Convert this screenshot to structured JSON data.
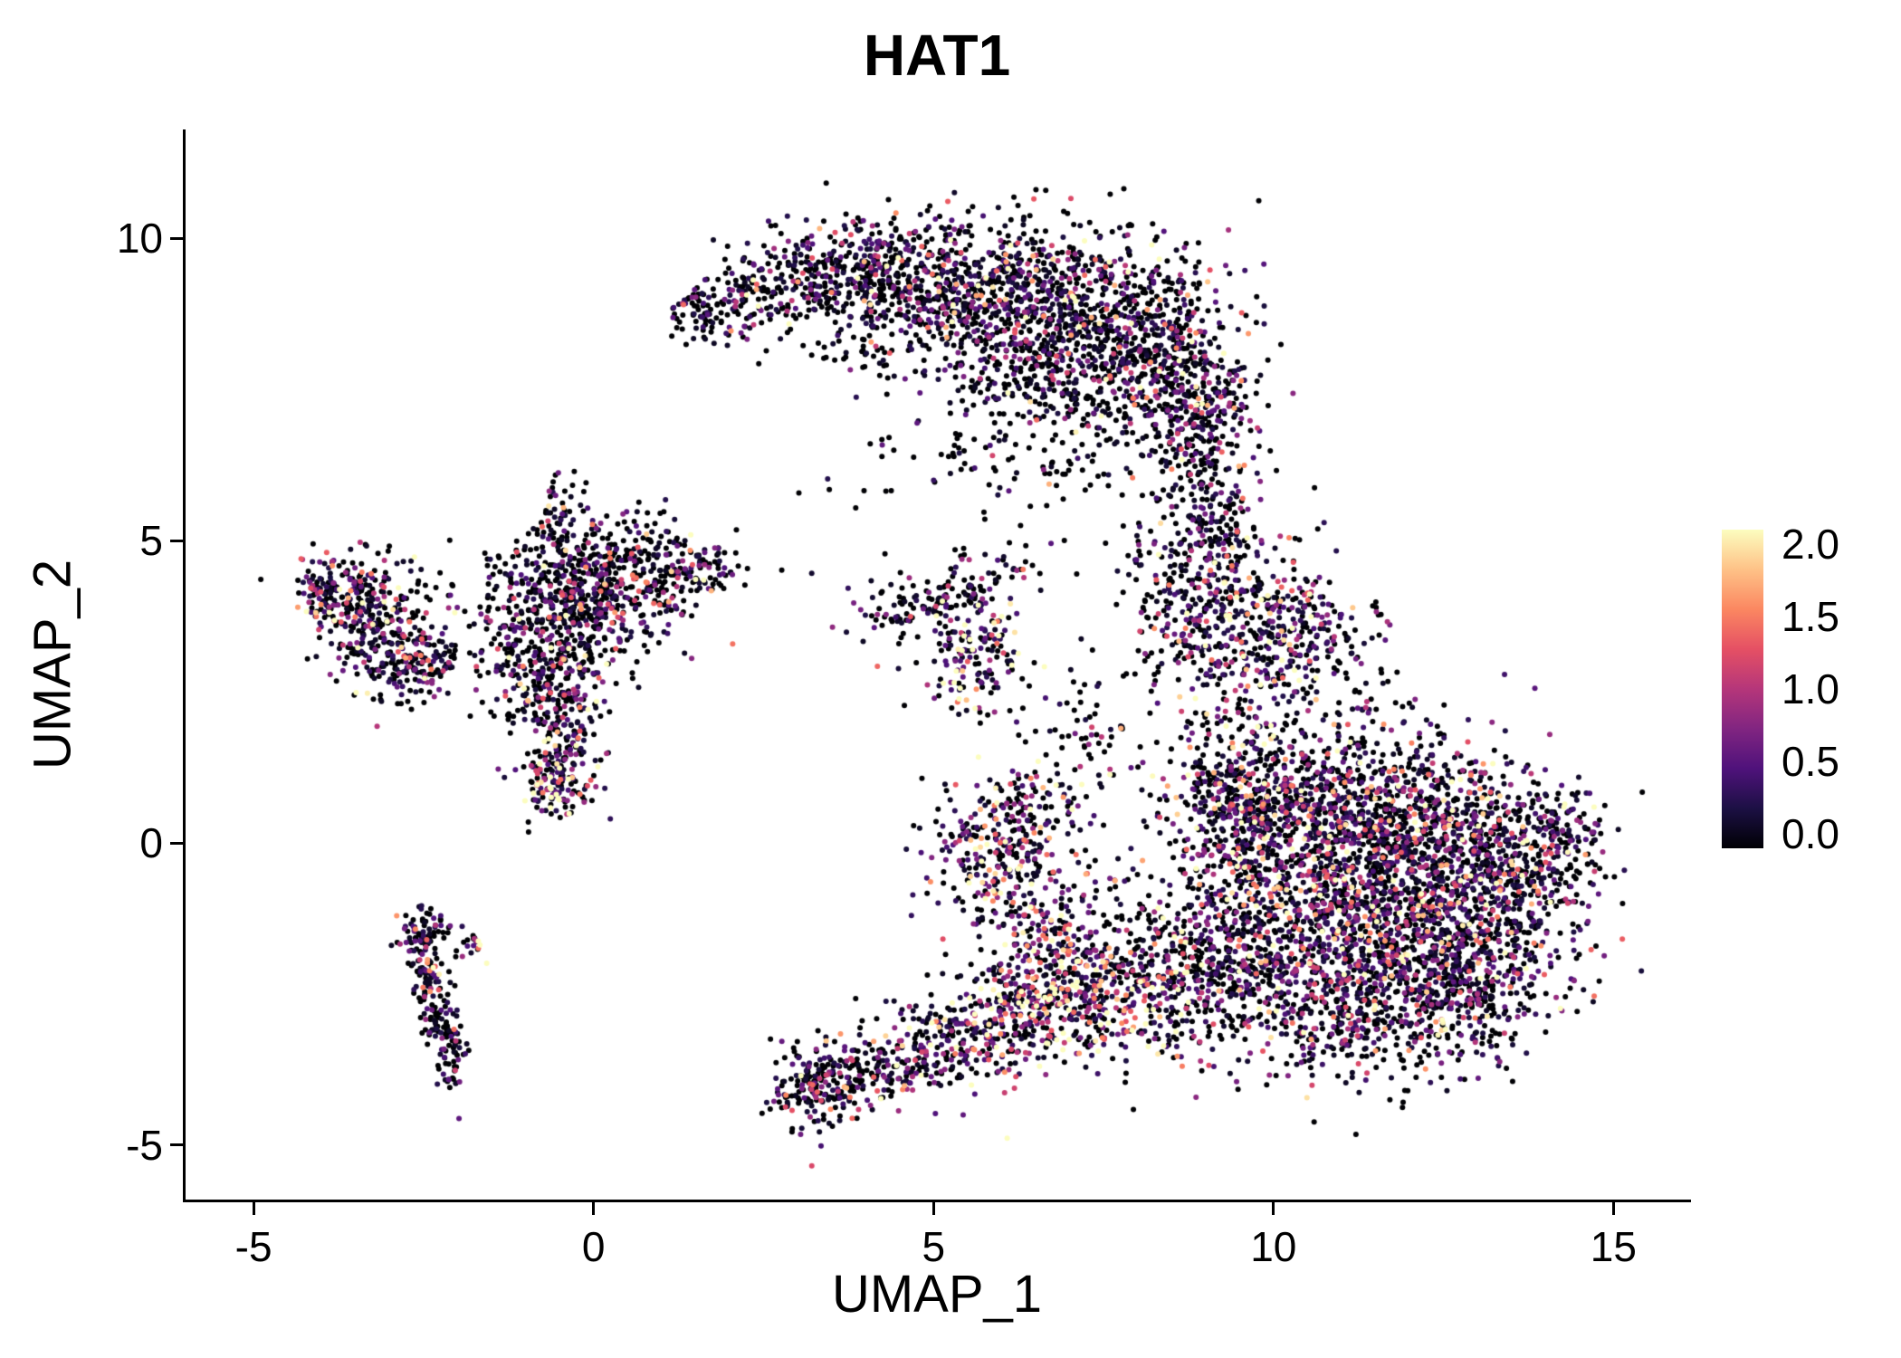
{
  "title": "HAT1",
  "axes": {
    "x": {
      "label": "UMAP_1",
      "tick_values": [
        -5,
        0,
        5,
        10,
        15
      ],
      "tick_labels": [
        "-5",
        "0",
        "5",
        "10",
        "15"
      ]
    },
    "y": {
      "label": "UMAP_2",
      "tick_values": [
        -5,
        0,
        5,
        10
      ],
      "tick_labels": [
        "-5",
        "0",
        "5",
        "10"
      ]
    }
  },
  "colorbar": {
    "min": 0.0,
    "max": 2.0,
    "tick_values": [
      0.0,
      0.5,
      1.0,
      1.5,
      2.0
    ],
    "tick_labels": [
      "0.0",
      "0.5",
      "1.0",
      "1.5",
      "2.0"
    ]
  },
  "chart_data": {
    "type": "scatter",
    "title": "HAT1",
    "xlabel": "UMAP_1",
    "ylabel": "UMAP_2",
    "xlim": [
      -6.0,
      16.1
    ],
    "ylim": [
      -5.9,
      11.8
    ],
    "value_range": [
      0,
      2
    ],
    "point_radius_px": 3,
    "seed": 42,
    "color_by": "HAT1 expression",
    "colormap_stops": [
      [
        0.0,
        "#000004"
      ],
      [
        0.125,
        "#1c1044"
      ],
      [
        0.25,
        "#4f127b"
      ],
      [
        0.375,
        "#812581"
      ],
      [
        0.5,
        "#b5367a"
      ],
      [
        0.625,
        "#e55064"
      ],
      [
        0.75,
        "#fb8761"
      ],
      [
        0.875,
        "#fec287"
      ],
      [
        1.0,
        "#fcfdbf"
      ]
    ],
    "cluster_fields": [
      "center_x",
      "center_y",
      "sd_x",
      "sd_y",
      "n_points",
      "prob_zero_expression",
      "expression_scale"
    ],
    "clusters": [
      [
        1.6,
        8.8,
        0.3,
        0.25,
        90,
        0.55,
        0.5
      ],
      [
        2.6,
        9.2,
        0.45,
        0.4,
        160,
        0.55,
        0.5
      ],
      [
        3.6,
        9.4,
        0.55,
        0.45,
        220,
        0.55,
        0.55
      ],
      [
        4.8,
        9.3,
        0.65,
        0.55,
        330,
        0.55,
        0.55
      ],
      [
        6.0,
        9.0,
        0.7,
        0.65,
        420,
        0.52,
        0.55
      ],
      [
        7.2,
        8.6,
        0.75,
        0.75,
        480,
        0.52,
        0.55
      ],
      [
        8.3,
        8.2,
        0.6,
        0.85,
        420,
        0.5,
        0.6
      ],
      [
        8.9,
        7.0,
        0.45,
        0.75,
        280,
        0.5,
        0.6
      ],
      [
        6.6,
        7.6,
        0.8,
        0.5,
        200,
        0.55,
        0.5
      ],
      [
        6.8,
        6.3,
        1.3,
        0.45,
        110,
        0.78,
        0.35
      ],
      [
        4.2,
        8.3,
        0.5,
        0.4,
        60,
        0.6,
        0.5
      ],
      [
        9.2,
        5.3,
        0.35,
        0.6,
        130,
        0.5,
        0.6
      ],
      [
        9.2,
        3.6,
        0.55,
        0.75,
        320,
        0.45,
        0.65
      ],
      [
        10.3,
        3.4,
        0.65,
        0.65,
        300,
        0.45,
        0.65
      ],
      [
        8.4,
        4.6,
        0.4,
        0.5,
        70,
        0.6,
        0.5
      ],
      [
        9.4,
        0.6,
        0.55,
        0.8,
        380,
        0.45,
        0.65
      ],
      [
        10.6,
        0.6,
        0.8,
        0.7,
        550,
        0.42,
        0.65
      ],
      [
        12.0,
        0.3,
        0.9,
        0.8,
        650,
        0.42,
        0.65
      ],
      [
        13.4,
        -0.3,
        0.7,
        0.7,
        450,
        0.42,
        0.6
      ],
      [
        14.2,
        0.2,
        0.3,
        0.4,
        90,
        0.45,
        0.6
      ],
      [
        10.8,
        -1.2,
        0.9,
        0.8,
        650,
        0.42,
        0.65
      ],
      [
        12.3,
        -1.6,
        0.9,
        0.8,
        600,
        0.42,
        0.65
      ],
      [
        11.3,
        -2.8,
        1.0,
        0.6,
        450,
        0.45,
        0.6
      ],
      [
        13.1,
        -2.2,
        0.6,
        0.6,
        250,
        0.45,
        0.6
      ],
      [
        9.4,
        -1.8,
        0.5,
        0.7,
        280,
        0.45,
        0.65
      ],
      [
        8.4,
        -2.3,
        0.6,
        0.7,
        300,
        0.38,
        0.75
      ],
      [
        7.3,
        -2.4,
        0.55,
        0.55,
        260,
        0.3,
        0.9
      ],
      [
        6.3,
        -2.8,
        0.55,
        0.45,
        230,
        0.3,
        0.9
      ],
      [
        5.3,
        -3.3,
        0.6,
        0.4,
        200,
        0.38,
        0.75
      ],
      [
        4.2,
        -3.8,
        0.5,
        0.3,
        160,
        0.45,
        0.6
      ],
      [
        3.2,
        -4.0,
        0.35,
        0.4,
        170,
        0.48,
        0.6
      ],
      [
        6.6,
        -1.6,
        0.5,
        0.5,
        140,
        0.35,
        0.8
      ],
      [
        7.2,
        -0.6,
        0.5,
        0.6,
        50,
        0.5,
        0.6
      ],
      [
        5.6,
        3.1,
        0.35,
        0.5,
        150,
        0.35,
        0.8
      ],
      [
        5.5,
        4.0,
        0.3,
        0.3,
        60,
        0.5,
        0.6
      ],
      [
        4.6,
        3.9,
        0.45,
        0.3,
        80,
        0.55,
        0.5
      ],
      [
        6.1,
        4.6,
        0.3,
        0.2,
        25,
        0.6,
        0.5
      ],
      [
        5.9,
        -0.2,
        0.5,
        0.55,
        280,
        0.38,
        0.75
      ],
      [
        6.6,
        0.7,
        0.3,
        0.4,
        60,
        0.5,
        0.6
      ],
      [
        7.2,
        1.9,
        0.45,
        0.6,
        70,
        0.55,
        0.55
      ],
      [
        -0.3,
        4.2,
        0.75,
        0.5,
        420,
        0.52,
        0.6
      ],
      [
        0.9,
        4.4,
        0.55,
        0.35,
        180,
        0.52,
        0.6
      ],
      [
        -0.2,
        3.4,
        0.6,
        0.4,
        180,
        0.55,
        0.55
      ],
      [
        -0.9,
        2.9,
        0.4,
        0.5,
        160,
        0.5,
        0.6
      ],
      [
        -0.45,
        1.7,
        0.3,
        0.55,
        200,
        0.4,
        0.75
      ],
      [
        -0.6,
        0.95,
        0.25,
        0.25,
        80,
        0.3,
        0.95
      ],
      [
        -0.45,
        5.4,
        0.18,
        0.35,
        55,
        0.55,
        0.5
      ],
      [
        0.3,
        5.0,
        0.55,
        0.3,
        70,
        0.6,
        0.5
      ],
      [
        1.6,
        4.5,
        0.3,
        0.2,
        40,
        0.5,
        0.6
      ],
      [
        -3.5,
        4.2,
        0.45,
        0.3,
        140,
        0.45,
        0.7
      ],
      [
        -4.0,
        4.1,
        0.15,
        0.3,
        50,
        0.3,
        0.95
      ],
      [
        -3.1,
        3.4,
        0.4,
        0.45,
        180,
        0.45,
        0.7
      ],
      [
        -2.6,
        2.9,
        0.35,
        0.3,
        110,
        0.5,
        0.65
      ],
      [
        -3.3,
        3.8,
        0.6,
        0.5,
        60,
        0.6,
        0.5
      ],
      [
        -2.6,
        -1.6,
        0.14,
        0.25,
        55,
        0.5,
        0.6
      ],
      [
        -2.45,
        -2.2,
        0.13,
        0.3,
        60,
        0.5,
        0.6
      ],
      [
        -2.25,
        -2.9,
        0.13,
        0.3,
        60,
        0.5,
        0.6
      ],
      [
        -2.05,
        -3.5,
        0.12,
        0.3,
        55,
        0.5,
        0.6
      ],
      [
        -2.35,
        -1.35,
        0.2,
        0.12,
        25,
        0.5,
        0.6
      ],
      [
        -1.8,
        -1.7,
        0.12,
        0.15,
        20,
        0.45,
        0.7
      ],
      [
        4.5,
        5.5,
        1.2,
        0.7,
        10,
        0.7,
        0.4
      ]
    ]
  }
}
